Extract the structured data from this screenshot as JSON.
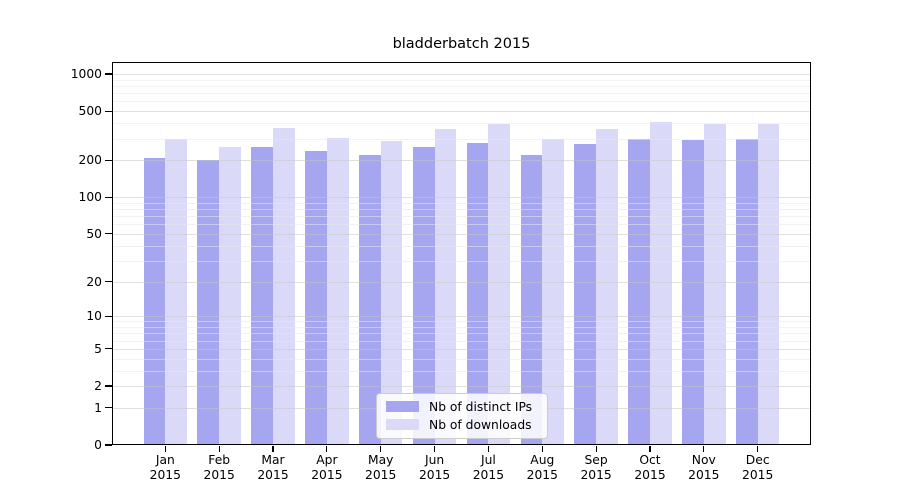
{
  "title": "bladderbatch 2015",
  "chart_data": {
    "type": "bar",
    "title": "bladderbatch 2015",
    "categories": [
      "Jan 2015",
      "Feb 2015",
      "Mar 2015",
      "Apr 2015",
      "May 2015",
      "Jun 2015",
      "Jul 2015",
      "Aug 2015",
      "Sep 2015",
      "Oct 2015",
      "Nov 2015",
      "Dec 2015"
    ],
    "x_months": [
      "Jan",
      "Feb",
      "Mar",
      "Apr",
      "May",
      "Jun",
      "Jul",
      "Aug",
      "Sep",
      "Oct",
      "Nov",
      "Dec"
    ],
    "x_year": "2015",
    "series": [
      {
        "name": "Nb of distinct IPs",
        "color": "#a5a5f0",
        "values": [
          209,
          200,
          255,
          237,
          220,
          255,
          276,
          222,
          270,
          295,
          294,
          298
        ]
      },
      {
        "name": "Nb of downloads",
        "color": "#dadaf8",
        "values": [
          295,
          255,
          365,
          302,
          286,
          358,
          397,
          297,
          358,
          410,
          395,
          395
        ]
      }
    ],
    "yscale": "log1p",
    "ylim": [
      0,
      1250
    ],
    "y_ticks": [
      0,
      1,
      2,
      5,
      10,
      20,
      50,
      100,
      200,
      500,
      1000
    ],
    "y_minor_ticks": [
      3,
      4,
      6,
      7,
      8,
      9,
      30,
      40,
      60,
      70,
      80,
      90,
      300,
      400,
      600,
      700,
      800,
      900
    ],
    "grid": true,
    "legend_position": "lower center",
    "xlabel": "",
    "ylabel": ""
  }
}
